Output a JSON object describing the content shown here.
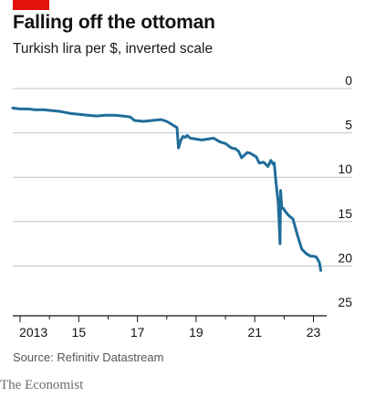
{
  "colors": {
    "accent": "#e3120b",
    "line": "#1f6d99",
    "grid": "#b7c6cf",
    "axis": "#121212",
    "text": "#121212",
    "source": "#555555",
    "brand": "#6b6b6b",
    "background": "#ffffff"
  },
  "header": {
    "title": "Falling off the ottoman",
    "subtitle": "Turkish lira per $, inverted scale"
  },
  "footer": {
    "source": "Source: Refinitiv Datastream",
    "brand": "The Economist"
  },
  "chart_data": {
    "type": "line",
    "title": "Falling off the ottoman",
    "subtitle": "Turkish lira per $, inverted scale",
    "xlabel": "",
    "ylabel": "",
    "x_tick_labels": [
      "2013",
      "15",
      "17",
      "19",
      "21",
      "23"
    ],
    "x_tick_years": [
      2013,
      2015,
      2017,
      2019,
      2021,
      2023
    ],
    "x_minor_tick_years": [
      2014,
      2016,
      2018,
      2020,
      2022
    ],
    "xlim": [
      2012.75,
      2023.45
    ],
    "y_ticks": [
      0,
      5,
      10,
      15,
      20,
      25
    ],
    "ylim": [
      0,
      25
    ],
    "y_inverted": true,
    "y_axis_side": "right",
    "grid": "horizontal",
    "series": [
      {
        "name": "",
        "x": [
          2012.75,
          2013.0,
          2013.3,
          2013.5,
          2013.8,
          2014.1,
          2014.4,
          2014.7,
          2015.0,
          2015.3,
          2015.6,
          2015.9,
          2016.2,
          2016.5,
          2016.75,
          2016.9,
          2017.2,
          2017.5,
          2017.8,
          2018.0,
          2018.2,
          2018.35,
          2018.4,
          2018.47,
          2018.55,
          2018.62,
          2018.7,
          2018.8,
          2019.0,
          2019.2,
          2019.4,
          2019.6,
          2019.8,
          2020.0,
          2020.2,
          2020.35,
          2020.45,
          2020.55,
          2020.65,
          2020.75,
          2020.85,
          2020.95,
          2021.05,
          2021.15,
          2021.3,
          2021.45,
          2021.55,
          2021.62,
          2021.66,
          2021.72,
          2021.8,
          2021.86,
          2021.88,
          2021.92,
          2021.97,
          2022.05,
          2022.15,
          2022.3,
          2022.45,
          2022.6,
          2022.75,
          2022.9,
          2023.0,
          2023.1,
          2023.2,
          2023.25
        ],
        "values": [
          2.2,
          2.3,
          2.3,
          2.4,
          2.4,
          2.5,
          2.6,
          2.8,
          2.9,
          3.0,
          3.1,
          3.0,
          3.0,
          3.1,
          3.2,
          3.6,
          3.7,
          3.6,
          3.5,
          3.7,
          4.1,
          4.4,
          6.7,
          5.9,
          5.4,
          5.5,
          5.3,
          5.6,
          5.7,
          5.8,
          5.7,
          5.6,
          6.0,
          6.2,
          6.7,
          6.8,
          7.1,
          7.8,
          7.5,
          7.2,
          7.3,
          7.5,
          7.7,
          8.4,
          8.3,
          8.8,
          8.1,
          8.5,
          8.4,
          10.5,
          13.0,
          17.5,
          11.5,
          13.5,
          13.5,
          13.9,
          14.3,
          14.7,
          16.5,
          18.1,
          18.6,
          18.9,
          18.9,
          19.0,
          19.6,
          20.5
        ]
      }
    ]
  }
}
